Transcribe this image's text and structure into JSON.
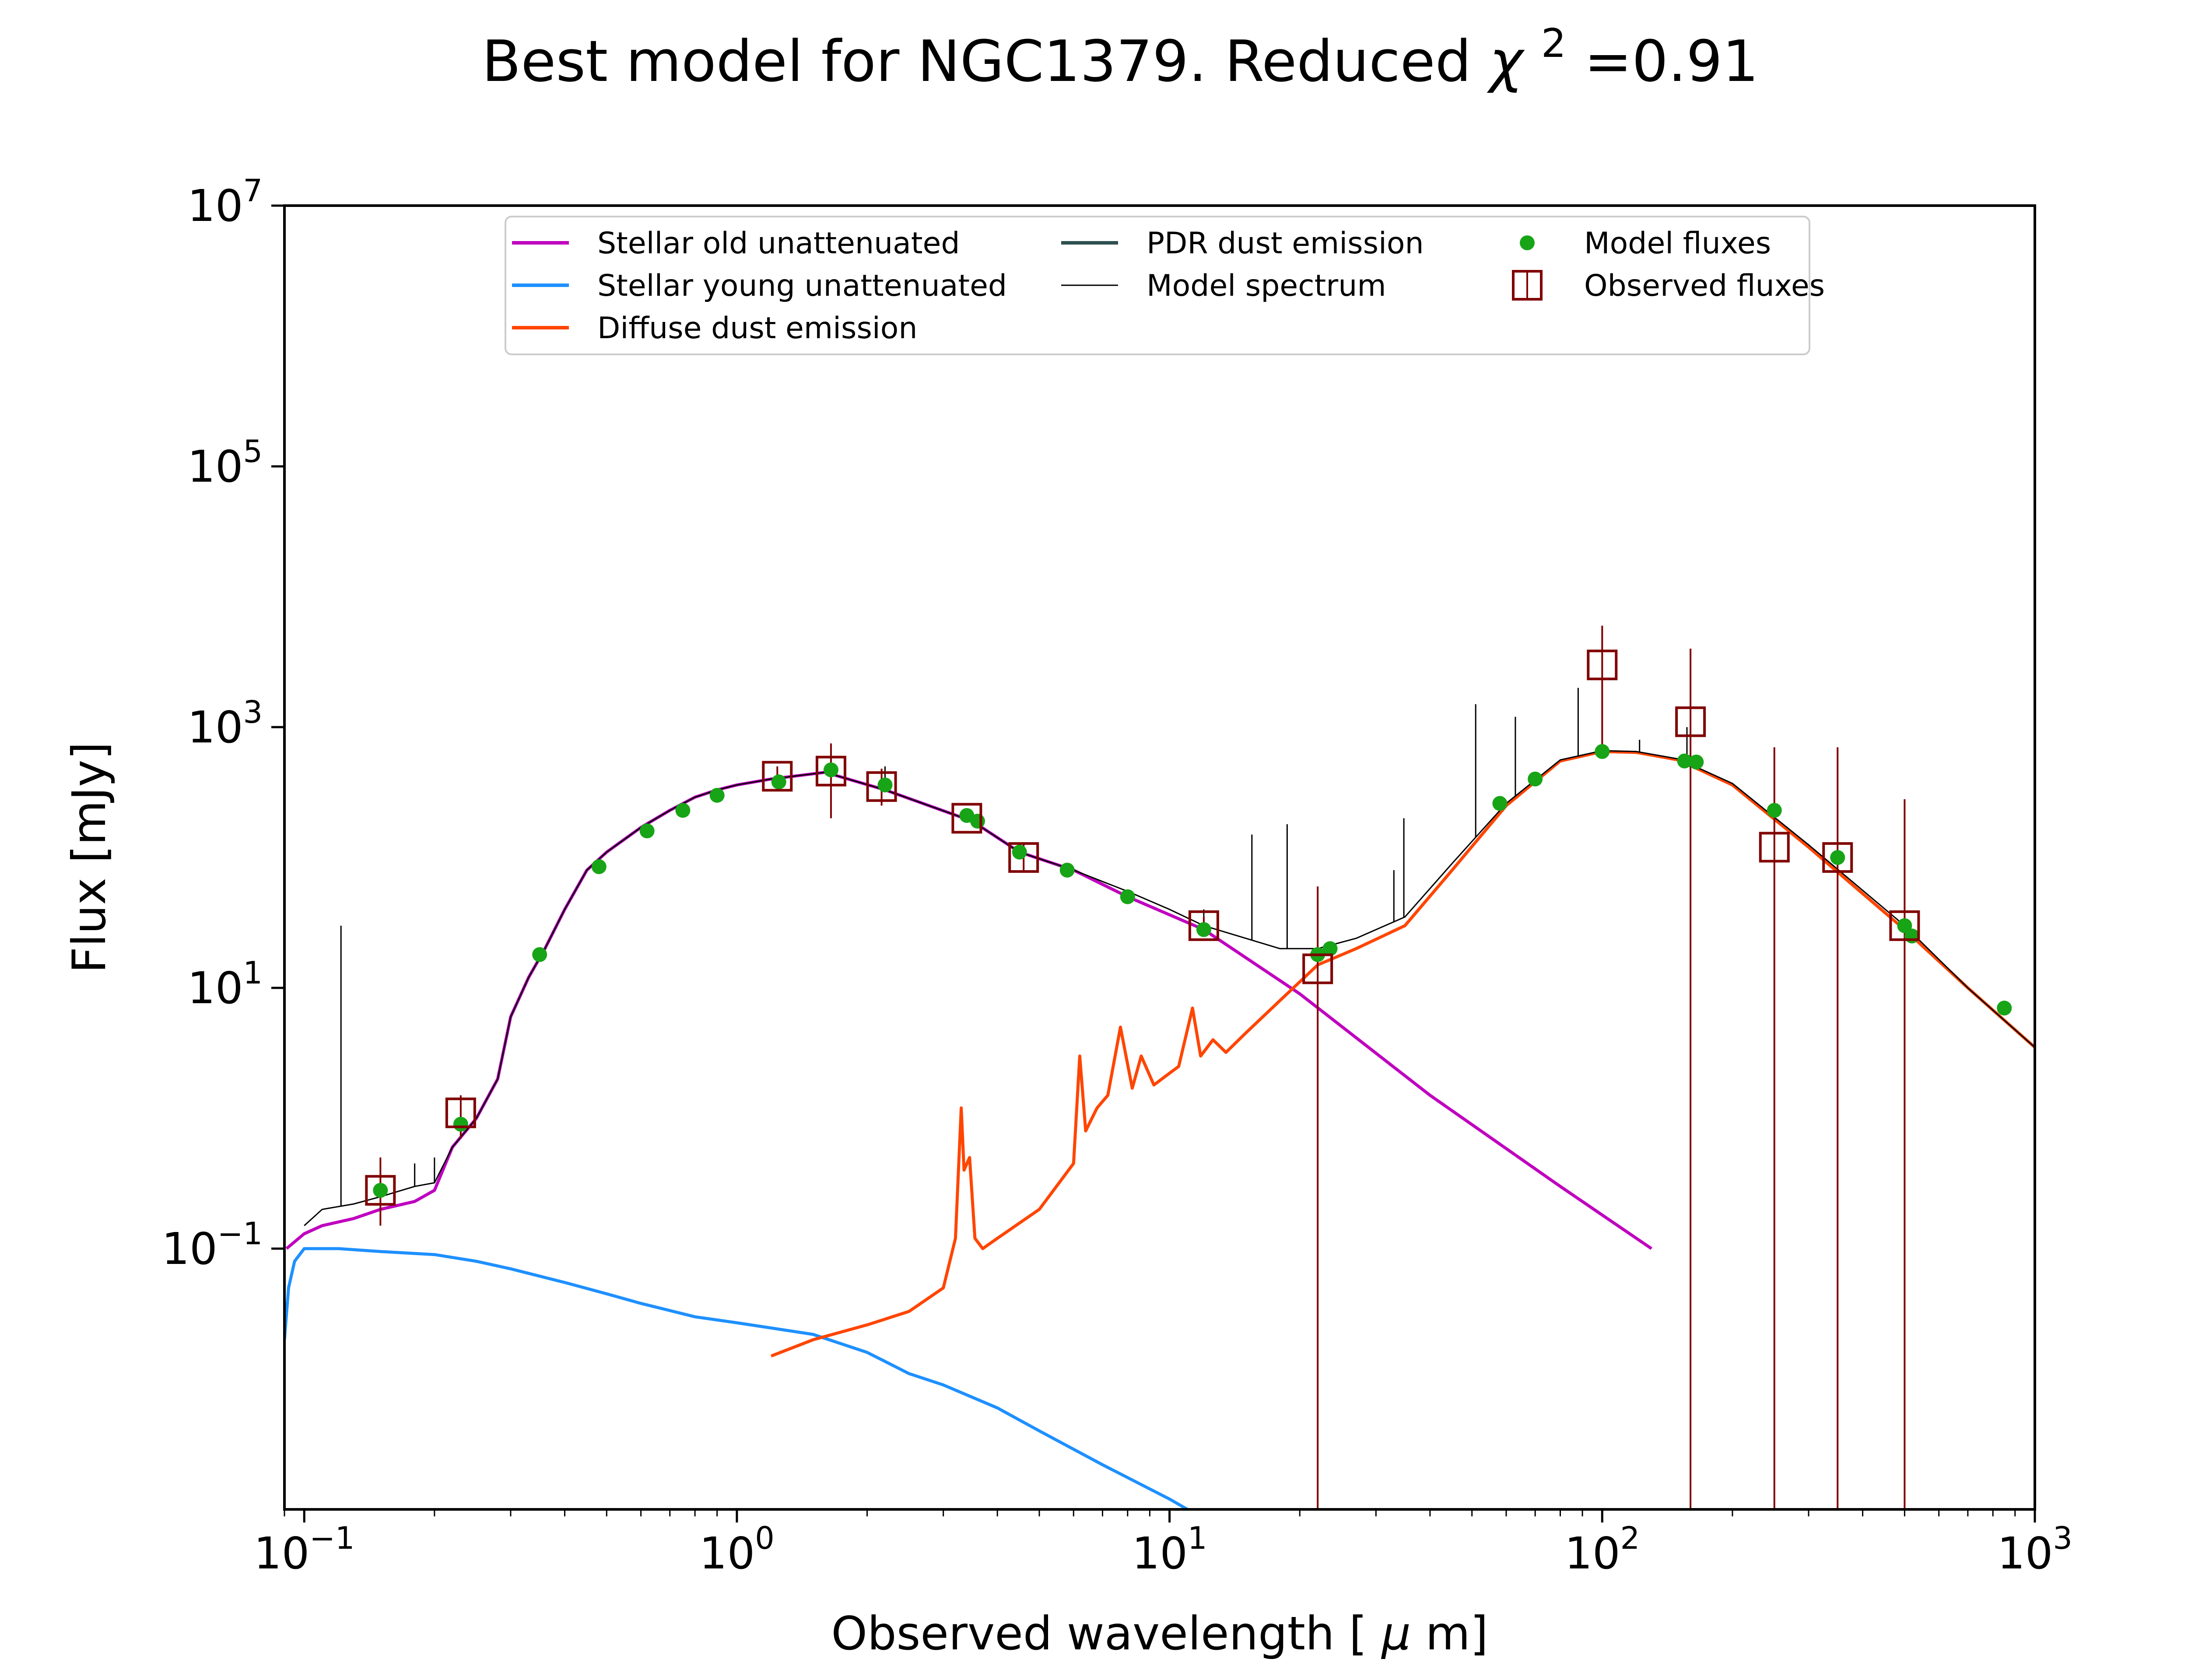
{
  "chart_data": {
    "type": "line",
    "title": "Best model for NGC1379. Reduced",
    "title_chi": "χ",
    "title_chi_exp": "2",
    "title_value": "=0.91",
    "xlabel_text": "Observed wavelength [",
    "xlabel_mu": "μ",
    "xlabel_unit": "m]",
    "ylabel": "Flux [mJy]",
    "x_scale": "log",
    "y_scale": "log",
    "xlim": [
      0.09,
      1000
    ],
    "ylim": [
      0.001,
      10000000
    ],
    "x_ticks": [
      {
        "value": 0.1,
        "base": "10",
        "exp": "−1"
      },
      {
        "value": 1,
        "base": "10",
        "exp": "0"
      },
      {
        "value": 10,
        "base": "10",
        "exp": "1"
      },
      {
        "value": 100,
        "base": "10",
        "exp": "2"
      },
      {
        "value": 1000,
        "base": "10",
        "exp": "3"
      }
    ],
    "y_ticks": [
      {
        "value": 0.1,
        "base": "10",
        "exp": "−1"
      },
      {
        "value": 10,
        "base": "10",
        "exp": "1"
      },
      {
        "value": 1000,
        "base": "10",
        "exp": "3"
      },
      {
        "value": 100000,
        "base": "10",
        "exp": "5"
      },
      {
        "value": 10000000,
        "base": "10",
        "exp": "7"
      }
    ],
    "legend": {
      "placement": "upper center",
      "entries": [
        {
          "label": "Stellar old unattenuated",
          "color": "#bf00bf",
          "kind": "line"
        },
        {
          "label": "Stellar young unattenuated",
          "color": "#1e90ff",
          "kind": "line"
        },
        {
          "label": "Diffuse dust emission",
          "color": "#ff4500",
          "kind": "line"
        },
        {
          "label": "PDR dust emission",
          "color": "#2f4f4f",
          "kind": "line"
        },
        {
          "label": "Model spectrum",
          "color": "#000000",
          "kind": "thinline"
        },
        {
          "label": "Model fluxes",
          "color": "#17a417",
          "kind": "dot"
        },
        {
          "label": "Observed fluxes",
          "color": "#800000",
          "kind": "square"
        }
      ]
    },
    "series": [
      {
        "name": "Stellar old unattenuated",
        "color": "#bf00bf",
        "x": [
          0.091,
          0.1,
          0.11,
          0.13,
          0.15,
          0.18,
          0.2,
          0.22,
          0.25,
          0.28,
          0.3,
          0.33,
          0.36,
          0.4,
          0.45,
          0.5,
          0.6,
          0.7,
          0.8,
          0.9,
          1.0,
          1.2,
          1.6,
          2.2,
          3.5,
          4.5,
          6,
          8,
          12,
          20,
          40,
          80,
          130
        ],
        "y": [
          0.1,
          0.13,
          0.15,
          0.17,
          0.2,
          0.23,
          0.28,
          0.6,
          1.0,
          2.0,
          6,
          12,
          20,
          40,
          80,
          110,
          170,
          230,
          290,
          330,
          360,
          400,
          450,
          330,
          190,
          110,
          80,
          50,
          28,
          9,
          1.5,
          0.3,
          0.1
        ]
      },
      {
        "name": "Stellar young unattenuated",
        "color": "#1e90ff",
        "x": [
          0.09,
          0.092,
          0.095,
          0.1,
          0.12,
          0.15,
          0.2,
          0.25,
          0.3,
          0.4,
          0.5,
          0.6,
          0.8,
          1.0,
          1.5,
          2.0,
          2.5,
          3.0,
          4.0,
          5.0,
          7.0,
          10.0,
          11.0
        ],
        "y": [
          0.02,
          0.05,
          0.08,
          0.1,
          0.1,
          0.095,
          0.09,
          0.08,
          0.07,
          0.055,
          0.045,
          0.038,
          0.03,
          0.027,
          0.022,
          0.016,
          0.011,
          0.009,
          0.006,
          0.004,
          0.0022,
          0.0012,
          0.001
        ]
      },
      {
        "name": "Diffuse dust emission",
        "color": "#ff4500",
        "x": [
          1.2,
          1.5,
          2,
          2.5,
          3,
          3.2,
          3.3,
          3.35,
          3.45,
          3.55,
          3.7,
          4,
          5,
          6,
          6.2,
          6.4,
          6.8,
          7.2,
          7.7,
          8.2,
          8.6,
          9.2,
          10.5,
          11.3,
          11.8,
          12.6,
          13.5,
          15,
          18,
          22,
          27,
          35,
          45,
          60,
          80,
          100,
          120,
          150,
          200,
          300,
          500,
          700,
          1000
        ],
        "y": [
          0.015,
          0.02,
          0.026,
          0.033,
          0.05,
          0.12,
          1.2,
          0.4,
          0.5,
          0.12,
          0.1,
          0.12,
          0.2,
          0.45,
          3.0,
          0.8,
          1.2,
          1.5,
          5.0,
          1.7,
          3.0,
          1.8,
          2.5,
          7.0,
          3.0,
          4.0,
          3.2,
          4.5,
          8,
          15,
          20,
          30,
          80,
          250,
          550,
          650,
          640,
          560,
          360,
          120,
          28,
          10,
          3.5
        ]
      },
      {
        "name": "Model spectrum",
        "color": "#000000",
        "x": [
          0.1,
          0.11,
          0.13,
          0.15,
          0.18,
          0.2,
          0.22,
          0.25,
          0.28,
          0.3,
          0.33,
          0.36,
          0.4,
          0.45,
          0.5,
          0.6,
          0.7,
          0.8,
          0.9,
          1.0,
          1.2,
          1.6,
          2.2,
          3.5,
          4.5,
          6,
          8,
          10,
          12,
          15,
          18,
          22,
          27,
          35,
          45,
          60,
          80,
          100,
          120,
          150,
          200,
          300,
          500,
          700,
          1000
        ],
        "y": [
          0.15,
          0.2,
          0.22,
          0.25,
          0.3,
          0.32,
          0.6,
          1.0,
          2.0,
          6,
          12,
          20,
          40,
          80,
          110,
          170,
          230,
          290,
          330,
          360,
          400,
          450,
          330,
          190,
          110,
          80,
          55,
          40,
          30,
          24,
          20,
          20,
          24,
          35,
          90,
          260,
          560,
          660,
          650,
          570,
          370,
          125,
          30,
          10,
          3.5
        ]
      }
    ],
    "spectrum_lines": [
      {
        "x": 0.1216,
        "y": 30
      },
      {
        "x": 0.15,
        "y": 0.5
      },
      {
        "x": 0.18,
        "y": 0.45
      },
      {
        "x": 0.2,
        "y": 0.5
      },
      {
        "x": 2.2,
        "y": 500
      },
      {
        "x": 12,
        "y": 40
      },
      {
        "x": 15.5,
        "y": 150
      },
      {
        "x": 18.7,
        "y": 180
      },
      {
        "x": 33,
        "y": 80
      },
      {
        "x": 34.8,
        "y": 200
      },
      {
        "x": 51,
        "y": 1500
      },
      {
        "x": 63,
        "y": 1200
      },
      {
        "x": 88,
        "y": 2000
      },
      {
        "x": 122,
        "y": 800
      },
      {
        "x": 157,
        "y": 1000
      }
    ],
    "model_fluxes": {
      "x": [
        0.15,
        0.23,
        0.35,
        0.48,
        0.62,
        0.75,
        0.9,
        1.25,
        1.65,
        2.2,
        3.4,
        3.6,
        4.5,
        5.8,
        8.0,
        12,
        22,
        23.5,
        58,
        70,
        100,
        155,
        165,
        250,
        350,
        500,
        520,
        850
      ],
      "y": [
        0.28,
        0.9,
        18,
        85,
        160,
        230,
        300,
        380,
        470,
        360,
        210,
        190,
        110,
        80,
        50,
        28,
        18,
        20,
        260,
        400,
        650,
        550,
        540,
        230,
        100,
        30,
        25,
        7
      ]
    },
    "observed_fluxes": {
      "x": [
        0.15,
        0.23,
        1.24,
        1.65,
        2.16,
        3.4,
        4.6,
        12,
        22,
        100,
        160,
        250,
        350,
        500
      ],
      "y": [
        0.28,
        1.1,
        420,
        460,
        350,
        200,
        100,
        30,
        14,
        3000,
        1100,
        120,
        100,
        30
      ],
      "err_low": [
        0.15,
        0.7,
        350,
        200,
        250,
        190,
        80,
        25,
        0.001,
        600,
        0.001,
        0.001,
        0.001,
        0.001
      ],
      "err_high": [
        0.5,
        1.5,
        500,
        750,
        480,
        210,
        130,
        35,
        60,
        6000,
        4000,
        700,
        700,
        280
      ]
    }
  }
}
